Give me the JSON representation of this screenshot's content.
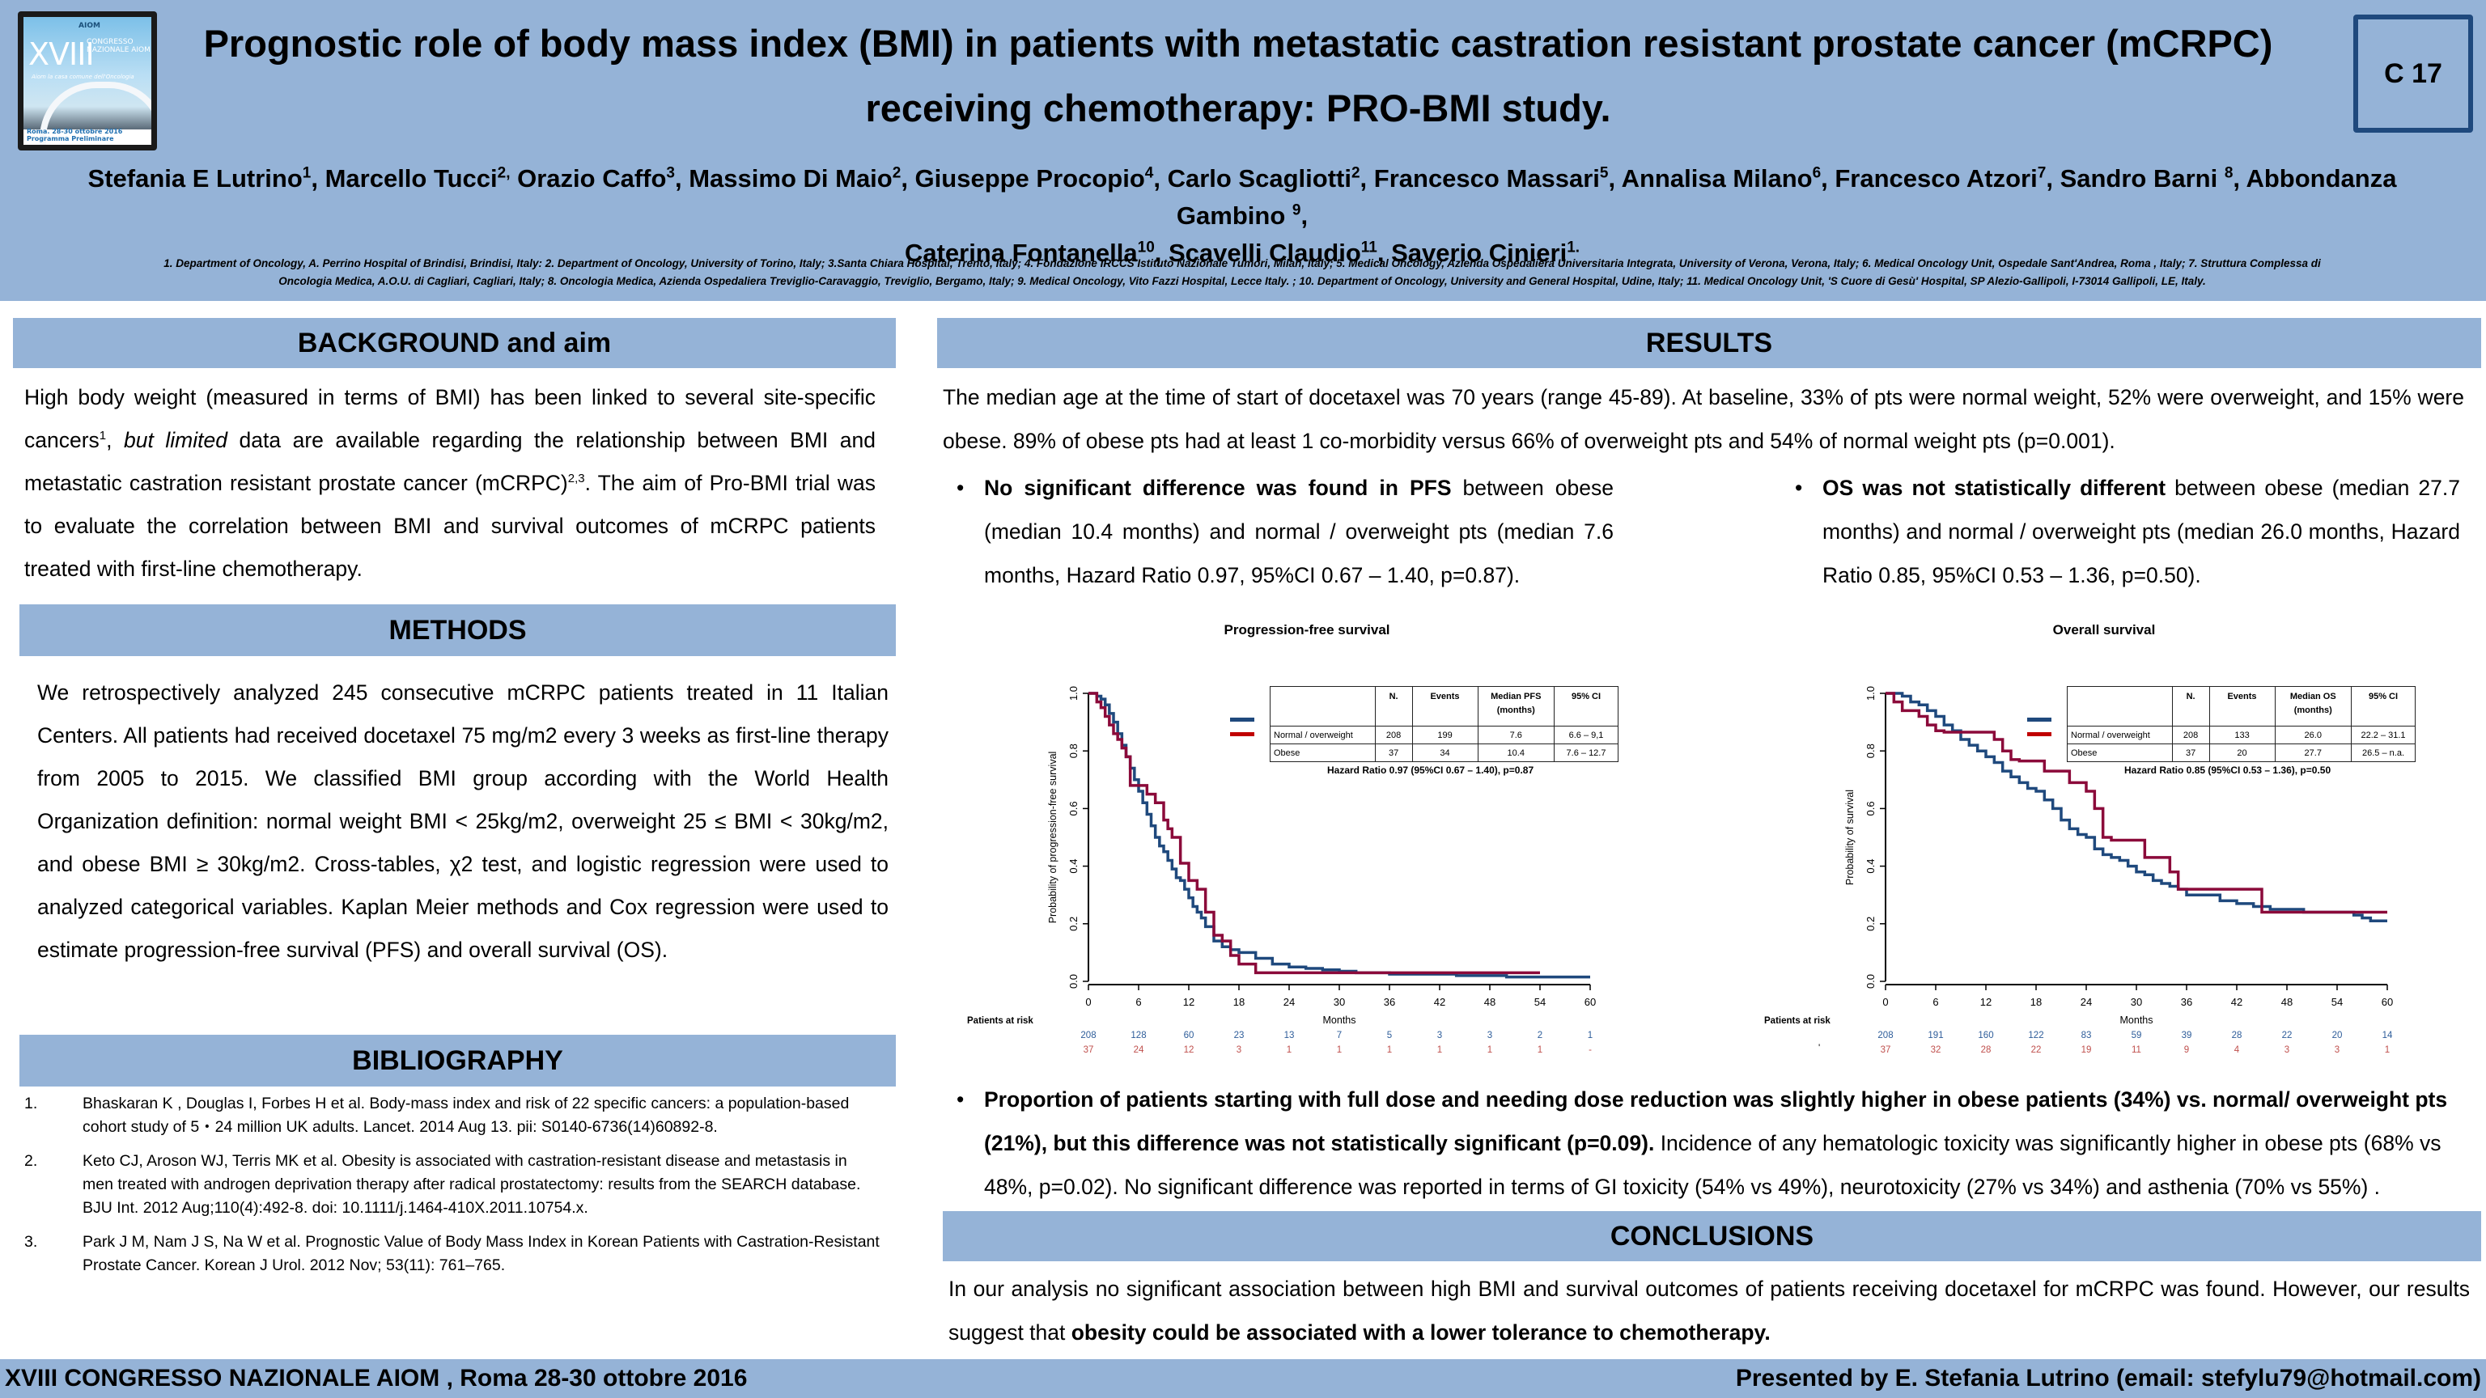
{
  "header": {
    "logo": {
      "brand": "AIOM",
      "roman": "XVIII",
      "congress": "CONGRESSO NAZIONALE AIOM",
      "tagline": "Aiom la casa comune dell'Oncologia",
      "footer": "Roma. 28-30 ottobre 2016   Programma Preliminare"
    },
    "title_line1": "Prognostic role of body mass index (BMI) in patients with metastatic castration resistant prostate cancer (mCRPC)",
    "title_line2": "receiving chemotherapy: PRO-BMI study.",
    "code": "C 17",
    "authors": [
      {
        "name": "Stefania E Lutrino",
        "sup": "1",
        "sep": ", "
      },
      {
        "name": "Marcello Tucci",
        "sup": "2,",
        "sep": " "
      },
      {
        "name": "Orazio Caffo",
        "sup": "3",
        "sep": ", "
      },
      {
        "name": "Massimo Di Maio",
        "sup": "2",
        "sep": ", "
      },
      {
        "name": "Giuseppe Procopio",
        "sup": "4",
        "sep": ", "
      },
      {
        "name": "Carlo Scagliotti",
        "sup": "2",
        "sep": ", "
      },
      {
        "name": "Francesco Massari",
        "sup": "5",
        "sep": ", "
      },
      {
        "name": "Annalisa Milano",
        "sup": "6",
        "sep": ", "
      },
      {
        "name": "Francesco Atzori",
        "sup": "7",
        "sep": ", "
      },
      {
        "name": "Sandro Barni ",
        "sup": "8",
        "sep": ", "
      },
      {
        "name": "Abbondanza Gambino ",
        "sup": "9",
        "sep": ","
      },
      {
        "name": "Caterina Fontanella",
        "sup": "10",
        "sep": ", "
      },
      {
        "name": "Scavelli Claudio",
        "sup": "11",
        "sep": ", "
      },
      {
        "name": "Saverio Cinieri",
        "sup": "1.",
        "sep": ""
      }
    ],
    "affiliations_line1": "1. Department of Oncology, A. Perrino Hospital of Brindisi, Brindisi, Italy: 2. Department of Oncology,  University of Torino, Italy; 3.Santa Chiara Hospital, Trento, Italy; 4. Fondazione IRCCS Istituto Nazionale Tumori, Milan,  Italy; 5. Medical Oncology, Azienda Ospedaliera Universitaria Integrata, University of Verona, Verona, Italy; 6. Medical Oncology Unit, Ospedale Sant'Andrea,  Roma , Italy; 7. Struttura Complessa di",
    "affiliations_line2": "Oncologia Medica, A.O.U. di Cagliari, Cagliari, Italy; 8. Oncologia Medica, Azienda Ospedaliera Treviglio-Caravaggio,  Treviglio, Bergamo, Italy; 9. Medical Oncology, Vito Fazzi Hospital, Lecce Italy. ; 10. Department of Oncology, University and General Hospital, Udine, Italy; 11. Medical Oncology Unit, 'S Cuore di Gesù' Hospital, SP Alezio-Gallipoli,  I-73014 Gallipoli, LE, Italy."
  },
  "background": {
    "heading": "BACKGROUND and aim",
    "p1": "High body weight (measured in terms of BMI) has been linked to several site-specific cancers",
    "p1_sup": "1",
    "p2": ", ",
    "p3_italic": "but limited",
    "p4": " data are available regarding the relationship between BMI and metastatic castration resistant prostate cancer (mCRPC)",
    "p4_sup": "2,3",
    "p5": ". The aim of Pro-BMI trial was to evaluate the correlation between BMI and survival outcomes of mCRPC patients treated with first-line chemotherapy."
  },
  "methods": {
    "heading": "METHODS",
    "text": "We retrospectively analyzed 245 consecutive mCRPC patients treated in 11 Italian Centers. All patients had received docetaxel 75 mg/m2 every 3 weeks as first-line therapy  from 2005 to 2015. We classified BMI group according with the World Health Organization definition: normal weight BMI < 25kg/m2, overweight 25 ≤ BMI < 30kg/m2, and obese BMI ≥ 30kg/m2. Cross-tables, χ2 test, and logistic regression were used to analyzed categorical variables. Kaplan Meier methods and Cox regression were used to estimate progression-free survival (PFS) and overall survival (OS)."
  },
  "bibliography": {
    "heading": "BIBLIOGRAPHY",
    "items": [
      {
        "num": "1.",
        "text": "Bhaskaran K , Douglas I, Forbes H et al. Body-mass index and risk of 22 specific cancers: a population-based cohort study of 5・24 million UK adults. Lancet. 2014 Aug 13. pii: S0140-6736(14)60892-8."
      },
      {
        "num": "2.",
        "text": "Keto CJ, Aroson WJ, Terris MK et al. Obesity is associated with castration-resistant disease and metastasis in men treated with androgen deprivation therapy after radical prostatectomy: results from the SEARCH database. BJU Int. 2012 Aug;110(4):492-8. doi: 10.1111/j.1464-410X.2011.10754.x."
      },
      {
        "num": "3.",
        "text": "Park J M, Nam J S, Na W et al. Prognostic Value of Body Mass Index in Korean Patients with Castration-Resistant Prostate Cancer. Korean J Urol. 2012 Nov; 53(11): 761–765."
      }
    ]
  },
  "results": {
    "heading": "RESULTS",
    "intro": "The median age at the time of start of docetaxel was 70 years (range 45-89). At baseline, 33% of pts were normal weight, 52% were overweight, and 15% were obese. 89% of obese pts had at least 1 co-morbidity versus 66% of overweight pts and 54% of normal weight pts (p=0.001).",
    "pfs_bullet_bold": "No significant difference was found in PFS",
    "pfs_bullet_rest": " between obese (median 10.4 months) and normal / overweight pts (median 7.6 months, Hazard Ratio  0.97, 95%CI 0.67 – 1.40, p=0.87).",
    "os_bullet_bold": "OS was not statistically different",
    "os_bullet_rest": " between obese (median 27.7 months) and normal / overweight pts (median 26.0 months, Hazard Ratio 0.85, 95%CI 0.53 – 1.36, p=0.50).",
    "dose_bullet_bold": "Proportion of patients starting with full dose and needing dose reduction was slightly higher in obese patients (34%) vs. normal/ overweight pts (21%), but this difference was not statistically significant (p=0.09).",
    "dose_bullet_rest": " Incidence of any hematologic toxicity was significantly higher in obese pts (68% vs 48%, p=0.02). No significant difference was reported in terms of GI toxicity (54% vs 49%), neurotoxicity (27% vs 34%) and asthenia (70% vs 55%) .",
    "bullet_glyph": "•"
  },
  "conclusions": {
    "heading": "CONCLUSIONS",
    "text_plain": "In our analysis no significant association between high BMI and survival outcomes of patients receiving docetaxel for mCRPC was found. However, our results suggest that ",
    "text_bold": "obesity could be associated with a lower tolerance to chemotherapy."
  },
  "footer": {
    "left": "XVIII CONGRESSO NAZIONALE AIOM , Roma 28-30 ottobre 2016",
    "right": "Presented by E. Stefania Lutrino (email: stefylu79@hotmail.com)"
  },
  "colors": {
    "band": "#95b3d7",
    "normal_series": "#1f497d",
    "obese_series": "#8b0a3a",
    "risk_normal": "#2e5d9a",
    "risk_obese": "#c0504d",
    "code_border": "#1f497d"
  },
  "chart_data": [
    {
      "type": "line",
      "subtype": "kaplan-meier",
      "title": "Progression-free survival",
      "xlabel": "Months",
      "ylabel": "Probability of progression-free survival",
      "xlim": [
        0,
        60
      ],
      "ylim": [
        0,
        1
      ],
      "xticks": [
        "0",
        "6",
        "12",
        "18",
        "24",
        "30",
        "36",
        "42",
        "48",
        "54",
        "60"
      ],
      "yticks": [
        "0.0",
        "0.2",
        "0.4",
        "0.6",
        "0.8",
        "1.0"
      ],
      "table": {
        "headers": [
          "",
          "N.",
          "Events",
          "Median PFS (months)",
          "95% CI"
        ],
        "rows": [
          [
            "Normal / overweight",
            "208",
            "199",
            "7.6",
            "6.6 – 9,1"
          ],
          [
            "Obese",
            "37",
            "34",
            "10.4",
            "7.6 – 12.7"
          ]
        ]
      },
      "hazard_ratio": "Hazard Ratio 0.97 (95%CI 0.67 – 1.40), p=0.87",
      "risk_label": "Patients at risk",
      "risk": {
        "normal": [
          "208",
          "128",
          "60",
          "23",
          "13",
          "7",
          "5",
          "3",
          "3",
          "2",
          "1"
        ],
        "obese": [
          "37",
          "24",
          "12",
          "3",
          "1",
          "1",
          "1",
          "1",
          "1",
          "1",
          "-"
        ]
      },
      "series": [
        {
          "name": "Normal / overweight",
          "x": [
            0,
            1,
            1.5,
            2,
            2.5,
            3,
            3.5,
            4,
            4.5,
            5,
            5.5,
            6,
            6.5,
            7,
            7.5,
            8,
            8.5,
            9,
            9.5,
            10,
            10.5,
            11,
            11.5,
            12,
            12.5,
            13,
            13.5,
            14,
            15,
            16,
            17,
            18,
            20,
            22,
            24,
            26,
            28,
            30,
            32,
            36,
            40,
            44,
            48,
            50,
            54,
            56,
            60
          ],
          "y": [
            1,
            0.99,
            0.98,
            0.96,
            0.93,
            0.9,
            0.86,
            0.82,
            0.78,
            0.74,
            0.7,
            0.66,
            0.62,
            0.58,
            0.54,
            0.5,
            0.47,
            0.45,
            0.42,
            0.39,
            0.36,
            0.35,
            0.32,
            0.29,
            0.26,
            0.24,
            0.22,
            0.19,
            0.14,
            0.12,
            0.11,
            0.1,
            0.08,
            0.06,
            0.05,
            0.045,
            0.04,
            0.035,
            0.03,
            0.025,
            0.025,
            0.02,
            0.02,
            0.015,
            0.015,
            0.015,
            0.015
          ]
        },
        {
          "name": "Obese",
          "x": [
            0,
            1,
            1.5,
            2,
            2.5,
            3,
            3.5,
            4,
            4.5,
            5,
            6,
            7,
            8,
            9,
            9.5,
            10,
            11,
            12,
            13,
            14,
            15,
            16,
            17,
            18,
            20,
            22,
            54
          ],
          "y": [
            1,
            0.97,
            0.95,
            0.92,
            0.89,
            0.86,
            0.84,
            0.81,
            0.78,
            0.68,
            0.68,
            0.65,
            0.62,
            0.56,
            0.53,
            0.5,
            0.41,
            0.35,
            0.32,
            0.24,
            0.16,
            0.14,
            0.09,
            0.06,
            0.03,
            0.03,
            0.03
          ]
        }
      ]
    },
    {
      "type": "line",
      "subtype": "kaplan-meier",
      "title": "Overall survival",
      "xlabel": "Months",
      "ylabel": "Probability of survival",
      "xlim": [
        0,
        60
      ],
      "ylim": [
        0,
        1
      ],
      "xticks": [
        "0",
        "6",
        "12",
        "18",
        "24",
        "30",
        "36",
        "42",
        "48",
        "54",
        "60"
      ],
      "yticks": [
        "0.0",
        "0.2",
        "0.4",
        "0.6",
        "0.8",
        "1.0"
      ],
      "table": {
        "headers": [
          "",
          "N.",
          "Events",
          "Median OS (months)",
          "95% CI"
        ],
        "rows": [
          [
            "Normal / overweight",
            "208",
            "133",
            "26.0",
            "22.2 – 31.1"
          ],
          [
            "Obese",
            "37",
            "20",
            "27.7",
            "26.5 – n.a."
          ]
        ]
      },
      "hazard_ratio": "Hazard Ratio 0.85 (95%CI 0.53 – 1.36), p=0.50",
      "risk_label": "Patients at risk",
      "risk_mark": "'",
      "risk": {
        "normal": [
          "208",
          "191",
          "160",
          "122",
          "83",
          "59",
          "39",
          "28",
          "22",
          "20",
          "14"
        ],
        "obese": [
          "37",
          "32",
          "28",
          "22",
          "19",
          "11",
          "9",
          "4",
          "3",
          "3",
          "1"
        ]
      },
      "series": [
        {
          "name": "Normal / overweight",
          "x": [
            0,
            2,
            3,
            4,
            5,
            6,
            7,
            8,
            9,
            10,
            11,
            12,
            13,
            14,
            15,
            16,
            17,
            18,
            19,
            20,
            21,
            22,
            23,
            24,
            25,
            26,
            27,
            28,
            29,
            30,
            31,
            32,
            33,
            34,
            35,
            36,
            38,
            40,
            42,
            44,
            46,
            48,
            50,
            52,
            54,
            56,
            57,
            58,
            60
          ],
          "y": [
            1,
            0.99,
            0.97,
            0.96,
            0.94,
            0.92,
            0.89,
            0.87,
            0.84,
            0.82,
            0.8,
            0.78,
            0.76,
            0.73,
            0.71,
            0.69,
            0.67,
            0.66,
            0.63,
            0.6,
            0.56,
            0.53,
            0.51,
            0.5,
            0.46,
            0.44,
            0.43,
            0.42,
            0.4,
            0.38,
            0.37,
            0.35,
            0.34,
            0.33,
            0.32,
            0.3,
            0.3,
            0.28,
            0.27,
            0.26,
            0.25,
            0.25,
            0.24,
            0.24,
            0.24,
            0.23,
            0.22,
            0.21,
            0.21
          ]
        },
        {
          "name": "Obese",
          "x": [
            0,
            1,
            2,
            4,
            5,
            6,
            7,
            12,
            13,
            14,
            15,
            16,
            19,
            21,
            22,
            24,
            25,
            26,
            27,
            30,
            31,
            34,
            35,
            36,
            45,
            60
          ],
          "y": [
            1,
            0.97,
            0.94,
            0.92,
            0.89,
            0.87,
            0.865,
            0.865,
            0.84,
            0.8,
            0.77,
            0.765,
            0.73,
            0.73,
            0.69,
            0.66,
            0.6,
            0.5,
            0.49,
            0.49,
            0.43,
            0.38,
            0.32,
            0.32,
            0.24,
            0.24
          ]
        }
      ]
    }
  ]
}
